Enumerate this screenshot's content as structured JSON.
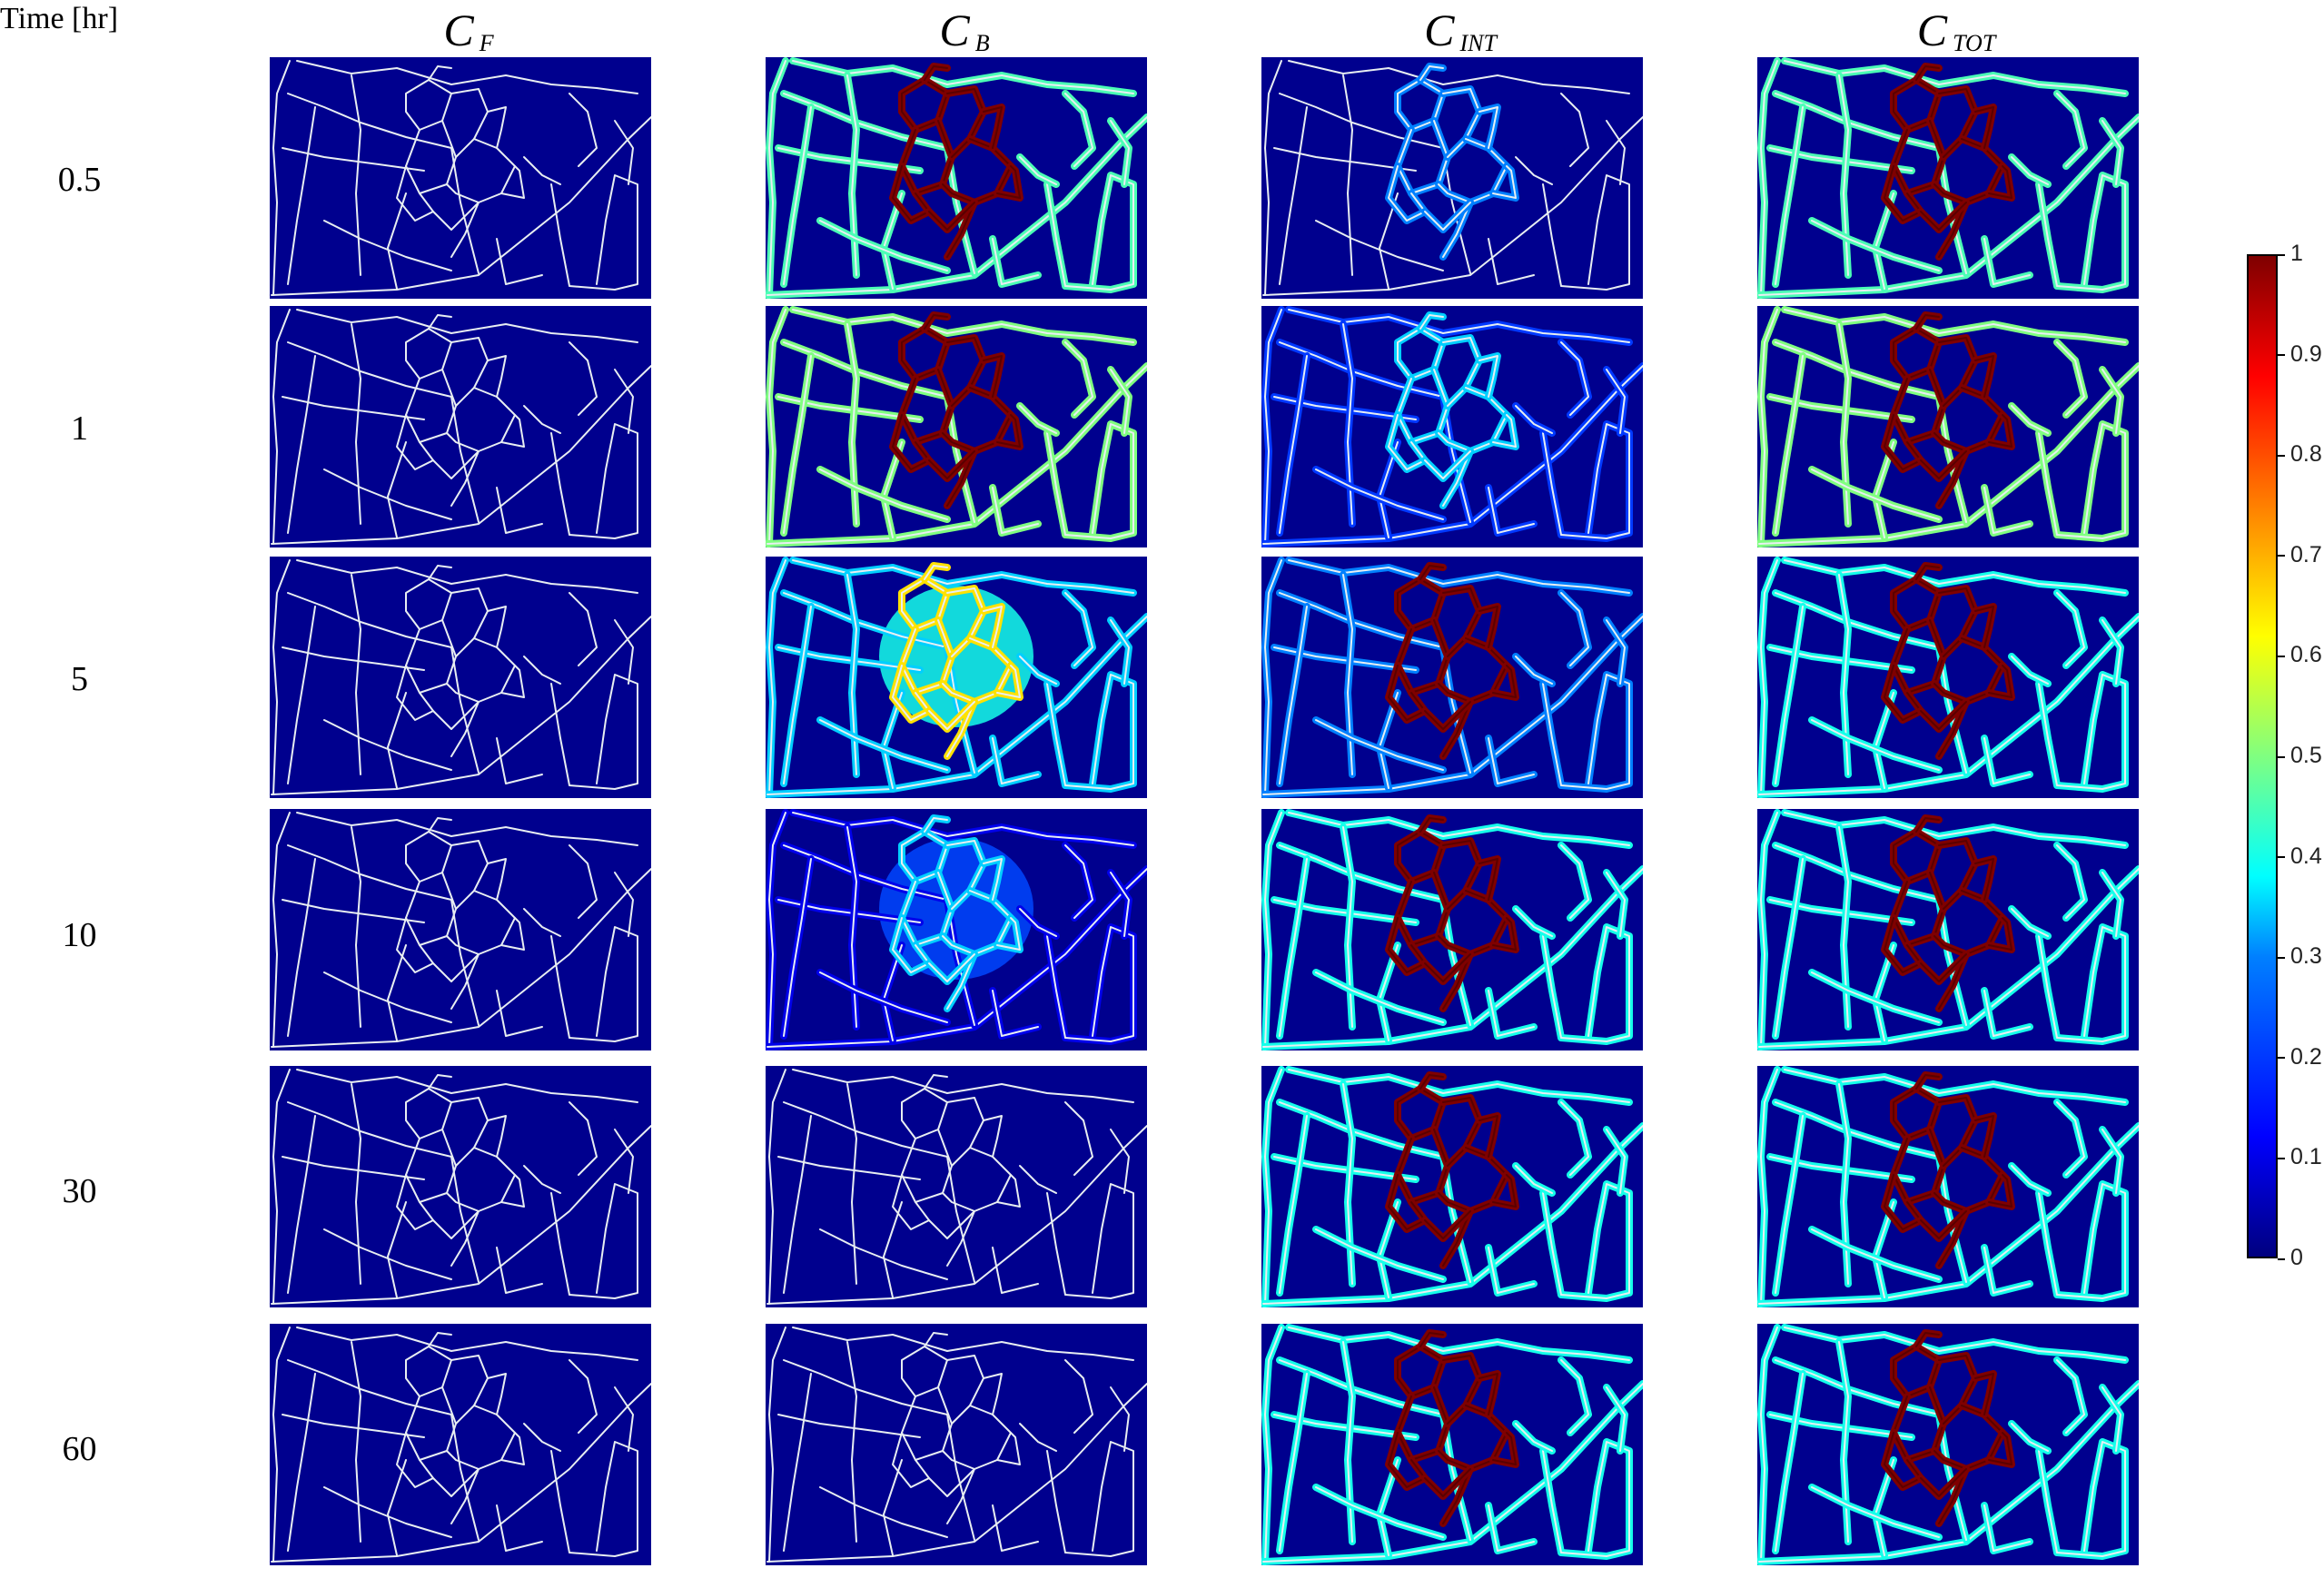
{
  "time_header": "Time [hr]",
  "columns": [
    {
      "symbol": "C",
      "subscript": "F"
    },
    {
      "symbol": "C",
      "subscript": "B"
    },
    {
      "symbol": "C",
      "subscript": "INT"
    },
    {
      "symbol": "C",
      "subscript": "TOT"
    }
  ],
  "rows": [
    "0.5",
    "1",
    "5",
    "10",
    "30",
    "60"
  ],
  "colorbar": {
    "ticks": [
      "1",
      "0.9",
      "0.8",
      "0.7",
      "0.6",
      "0.5",
      "0.4",
      "0.3",
      "0.2",
      "0.1",
      "0"
    ],
    "colormap": "jet",
    "colors": [
      "#00007f",
      "#0000ff",
      "#0080ff",
      "#00ffff",
      "#80ff80",
      "#ffff00",
      "#ff8000",
      "#ff0000",
      "#7f0000"
    ]
  },
  "panel_levels": [
    {
      "outer": 0.0,
      "inner": 0.0,
      "halo": 0.0,
      "blob": 0.0
    },
    {
      "outer": 0.45,
      "inner": 1.0,
      "halo": 0.0,
      "blob": 0.0
    },
    {
      "outer": 0.0,
      "inner": 0.3,
      "halo": 0.0,
      "blob": 0.0
    },
    {
      "outer": 0.45,
      "inner": 1.0,
      "halo": 0.0,
      "blob": 0.0
    },
    {
      "outer": 0.0,
      "inner": 0.0,
      "halo": 0.0,
      "blob": 0.0
    },
    {
      "outer": 0.5,
      "inner": 1.0,
      "halo": 0.0,
      "blob": 0.0
    },
    {
      "outer": 0.2,
      "inner": 0.35,
      "halo": 0.0,
      "blob": 0.0
    },
    {
      "outer": 0.5,
      "inner": 1.0,
      "halo": 0.0,
      "blob": 0.0
    },
    {
      "outer": 0.0,
      "inner": 0.0,
      "halo": 0.0,
      "blob": 0.0
    },
    {
      "outer": 0.35,
      "inner": 0.65,
      "halo": 0.45,
      "blob": 0.4
    },
    {
      "outer": 0.3,
      "inner": 1.0,
      "halo": 0.0,
      "blob": 0.0
    },
    {
      "outer": 0.4,
      "inner": 1.0,
      "halo": 0.0,
      "blob": 0.0
    },
    {
      "outer": 0.0,
      "inner": 0.0,
      "halo": 0.0,
      "blob": 0.0
    },
    {
      "outer": 0.1,
      "inner": 0.35,
      "halo": 0.25,
      "blob": 0.22
    },
    {
      "outer": 0.4,
      "inner": 1.0,
      "halo": 0.0,
      "blob": 0.0
    },
    {
      "outer": 0.4,
      "inner": 1.0,
      "halo": 0.0,
      "blob": 0.0
    },
    {
      "outer": 0.0,
      "inner": 0.0,
      "halo": 0.0,
      "blob": 0.0
    },
    {
      "outer": 0.0,
      "inner": 0.0,
      "halo": 0.0,
      "blob": 0.0
    },
    {
      "outer": 0.4,
      "inner": 1.0,
      "halo": 0.0,
      "blob": 0.0
    },
    {
      "outer": 0.4,
      "inner": 1.0,
      "halo": 0.0,
      "blob": 0.0
    },
    {
      "outer": 0.0,
      "inner": 0.0,
      "halo": 0.0,
      "blob": 0.0
    },
    {
      "outer": 0.0,
      "inner": 0.0,
      "halo": 0.0,
      "blob": 0.0
    },
    {
      "outer": 0.4,
      "inner": 1.0,
      "halo": 0.0,
      "blob": 0.0
    },
    {
      "outer": 0.4,
      "inner": 1.0,
      "halo": 0.0,
      "blob": 0.0
    }
  ]
}
